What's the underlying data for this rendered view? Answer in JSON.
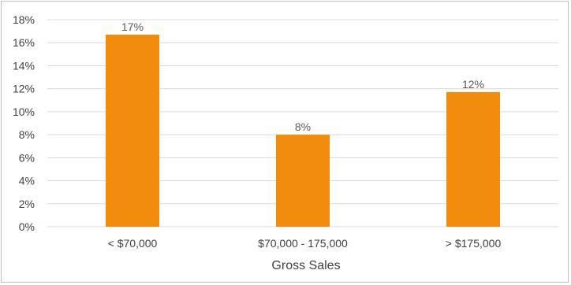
{
  "chart_data": {
    "type": "bar",
    "title": "",
    "xlabel": "Gross Sales",
    "ylabel": "",
    "categories": [
      "< $70,000",
      "$70,000 - 175,000",
      "> $175,000"
    ],
    "values": [
      16.7,
      8.0,
      11.7
    ],
    "data_labels": [
      "17%",
      "8%",
      "12%"
    ],
    "ylim": [
      0,
      18
    ],
    "yticks": [
      0,
      2,
      4,
      6,
      8,
      10,
      12,
      14,
      16,
      18
    ],
    "ytick_labels": [
      "0%",
      "2%",
      "4%",
      "6%",
      "8%",
      "10%",
      "12%",
      "14%",
      "16%",
      "18%"
    ],
    "grid": true,
    "legend": "none",
    "bar_color": "#f28c0f",
    "grid_color": "#d9d9d9"
  }
}
